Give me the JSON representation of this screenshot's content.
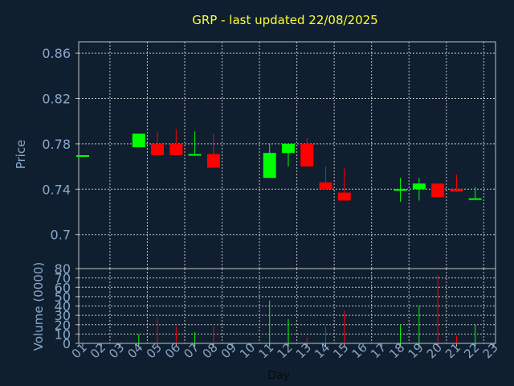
{
  "chart_data": {
    "type": "candlestick",
    "title": "GRP - last updated 22/08/2025",
    "xlabel": "Day",
    "price_panel": {
      "ylabel": "Price",
      "ylim": [
        0.67,
        0.87
      ],
      "yticks": [
        "0.86",
        "0.82",
        "0.78",
        "0.74",
        "0.7"
      ],
      "ytick_values": [
        0.86,
        0.82,
        0.78,
        0.74,
        0.7
      ]
    },
    "volume_panel": {
      "ylabel": "Volume (0000)",
      "ylim": [
        0,
        80
      ],
      "yticks": [
        "80",
        "70",
        "60",
        "50",
        "40",
        "30",
        "20",
        "10",
        "0"
      ],
      "ytick_values": [
        80,
        70,
        60,
        50,
        40,
        30,
        20,
        10,
        0
      ]
    },
    "days": [
      "01",
      "02",
      "03",
      "04",
      "05",
      "06",
      "07",
      "08",
      "09",
      "10",
      "11",
      "12",
      "13",
      "14",
      "15",
      "16",
      "17",
      "18",
      "19",
      "20",
      "21",
      "22",
      "23"
    ],
    "candles": [
      {
        "day": "01",
        "open": 0.77,
        "close": 0.77,
        "high": 0.77,
        "low": 0.77,
        "volume": 0
      },
      {
        "day": "04",
        "open": 0.777,
        "close": 0.789,
        "high": 0.789,
        "low": 0.777,
        "volume": 10
      },
      {
        "day": "05",
        "open": 0.78,
        "close": 0.77,
        "high": 0.791,
        "low": 0.77,
        "volume": 28
      },
      {
        "day": "06",
        "open": 0.78,
        "close": 0.77,
        "high": 0.793,
        "low": 0.77,
        "volume": 18
      },
      {
        "day": "07",
        "open": 0.77,
        "close": 0.771,
        "high": 0.791,
        "low": 0.77,
        "volume": 12
      },
      {
        "day": "08",
        "open": 0.771,
        "close": 0.759,
        "high": 0.789,
        "low": 0.759,
        "volume": 18
      },
      {
        "day": "11",
        "open": 0.75,
        "close": 0.772,
        "high": 0.78,
        "low": 0.75,
        "volume": 46
      },
      {
        "day": "12",
        "open": 0.772,
        "close": 0.78,
        "high": 0.78,
        "low": 0.76,
        "volume": 26
      },
      {
        "day": "13",
        "open": 0.78,
        "close": 0.76,
        "high": 0.785,
        "low": 0.76,
        "volume": 6
      },
      {
        "day": "14",
        "open": 0.746,
        "close": 0.74,
        "high": 0.76,
        "low": 0.74,
        "volume": 18
      },
      {
        "day": "15",
        "open": 0.737,
        "close": 0.73,
        "high": 0.759,
        "low": 0.73,
        "volume": 35
      },
      {
        "day": "18",
        "open": 0.739,
        "close": 0.74,
        "high": 0.75,
        "low": 0.729,
        "volume": 20
      },
      {
        "day": "19",
        "open": 0.74,
        "close": 0.745,
        "high": 0.75,
        "low": 0.73,
        "volume": 40
      },
      {
        "day": "20",
        "open": 0.745,
        "close": 0.733,
        "high": 0.745,
        "low": 0.733,
        "volume": 73
      },
      {
        "day": "21",
        "open": 0.74,
        "close": 0.738,
        "high": 0.753,
        "low": 0.738,
        "volume": 8
      },
      {
        "day": "22",
        "open": 0.731,
        "close": 0.732,
        "high": 0.742,
        "low": 0.731,
        "volume": 20
      }
    ],
    "colors": {
      "up": "#00ff00",
      "down": "#ff0000",
      "background": "#0f1f30",
      "axis": "#c0c0c0",
      "grid": "#c0c0c0",
      "text": "#8aa8c8",
      "title": "#ffff33"
    },
    "grid": true
  }
}
